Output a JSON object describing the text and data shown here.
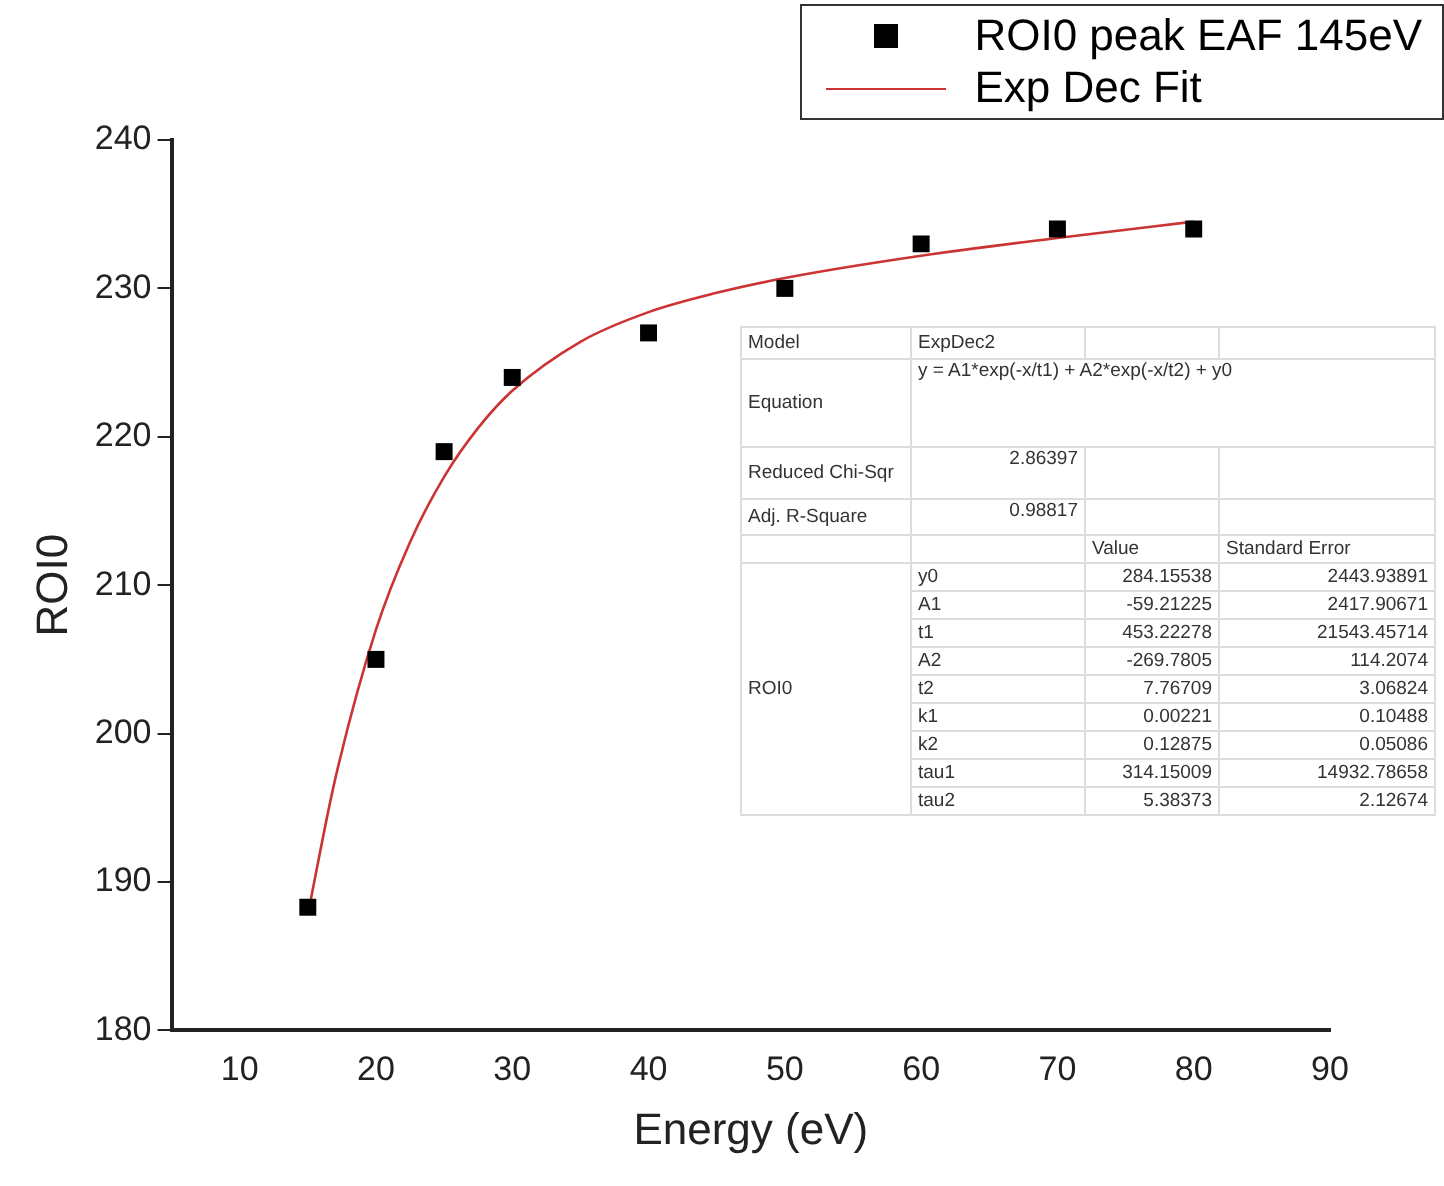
{
  "chart_data": {
    "type": "scatter",
    "xlabel": "Energy (eV)",
    "ylabel": "ROI0",
    "xlim": [
      5,
      90
    ],
    "xticks": [
      10,
      20,
      30,
      40,
      50,
      60,
      70,
      80,
      90
    ],
    "ylim": [
      180,
      240
    ],
    "yticks": [
      180,
      190,
      200,
      210,
      220,
      230,
      240
    ],
    "grid": false,
    "legend": "top right",
    "series": [
      {
        "name": "ROI0 peak EAF 145eV",
        "marker": "square",
        "color": "#000000",
        "x": [
          15,
          20,
          25,
          30,
          40,
          50,
          60,
          70,
          80
        ],
        "values": [
          188.3,
          205,
          219,
          224,
          227,
          230,
          233,
          234,
          234
        ]
      },
      {
        "name": "Exp Dec Fit",
        "type": "line",
        "marker": "none",
        "line_style": "solid",
        "color": "#cc3333",
        "x": [
          15,
          17,
          20,
          22.5,
          25,
          27.5,
          30,
          35,
          40,
          45,
          50,
          60,
          70,
          80
        ],
        "values": [
          187.8,
          196.9,
          207.0,
          212.9,
          217.3,
          220.6,
          223.1,
          226.4,
          228.4,
          229.7,
          230.7,
          232.2,
          233.4,
          234.5
        ]
      }
    ],
    "annotations": [
      "Model",
      "ExpDec2",
      "Equation",
      "y = A1*exp(-x/t1) + A2*exp(-x/t2) + y0",
      "Reduced Chi-Sqr",
      "2.86397",
      "Adj. R-Square",
      "0.98817",
      "Value",
      "Standard Error",
      "ROI0",
      "y0",
      "284.15538",
      "2443.93891",
      "A1",
      "-59.21225",
      "2417.90671",
      "t1",
      "453.22278",
      "21543.45714",
      "A2",
      "-269.7805",
      "114.2074",
      "t2",
      "7.76709",
      "3.06824",
      "k1",
      "0.00221",
      "0.10488",
      "k2",
      "0.12875",
      "0.05086",
      "tau1",
      "314.15009",
      "14932.78658",
      "tau2",
      "5.38373",
      "2.12674"
    ]
  }
}
